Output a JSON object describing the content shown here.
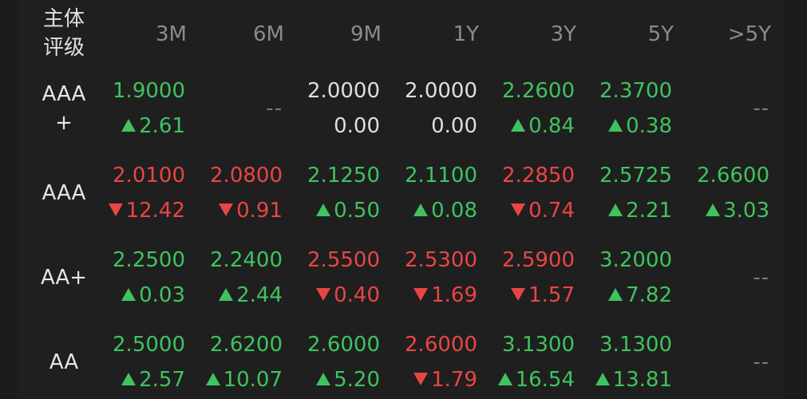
{
  "header": {
    "label_line1": "主体",
    "label_line2": "评级"
  },
  "columns": [
    "3M",
    "6M",
    "9M",
    "1Y",
    "3Y",
    "5Y",
    ">5Y"
  ],
  "empty_mark": "--",
  "colors": {
    "up": "#3fc35f",
    "down": "#ea4545",
    "flat": "#dedede",
    "background": "#1c1c1c"
  },
  "rows": [
    {
      "rating_line1": "AAA",
      "rating_line2": "+",
      "cells": [
        {
          "rate": "1.9000",
          "change": "2.61",
          "dir": "up"
        },
        {
          "empty": true
        },
        {
          "rate": "2.0000",
          "change": "0.00",
          "dir": "flat"
        },
        {
          "rate": "2.0000",
          "change": "0.00",
          "dir": "flat"
        },
        {
          "rate": "2.2600",
          "change": "0.84",
          "dir": "up"
        },
        {
          "rate": "2.3700",
          "change": "0.38",
          "dir": "up"
        },
        {
          "empty": true
        }
      ]
    },
    {
      "rating_line1": "AAA",
      "rating_line2": "",
      "cells": [
        {
          "rate": "2.0100",
          "change": "12.42",
          "dir": "down"
        },
        {
          "rate": "2.0800",
          "change": "0.91",
          "dir": "down"
        },
        {
          "rate": "2.1250",
          "change": "0.50",
          "dir": "up"
        },
        {
          "rate": "2.1100",
          "change": "0.08",
          "dir": "up"
        },
        {
          "rate": "2.2850",
          "change": "0.74",
          "dir": "down"
        },
        {
          "rate": "2.5725",
          "change": "2.21",
          "dir": "up"
        },
        {
          "rate": "2.6600",
          "change": "3.03",
          "dir": "up"
        }
      ]
    },
    {
      "rating_line1": "AA+",
      "rating_line2": "",
      "cells": [
        {
          "rate": "2.2500",
          "change": "0.03",
          "dir": "up"
        },
        {
          "rate": "2.2400",
          "change": "2.44",
          "dir": "up"
        },
        {
          "rate": "2.5500",
          "change": "0.40",
          "dir": "down"
        },
        {
          "rate": "2.5300",
          "change": "1.69",
          "dir": "down"
        },
        {
          "rate": "2.5900",
          "change": "1.57",
          "dir": "down"
        },
        {
          "rate": "3.2000",
          "change": "7.82",
          "dir": "up"
        },
        {
          "empty": true
        }
      ]
    },
    {
      "rating_line1": "AA",
      "rating_line2": "",
      "cells": [
        {
          "rate": "2.5000",
          "change": "2.57",
          "dir": "up"
        },
        {
          "rate": "2.6200",
          "change": "10.07",
          "dir": "up"
        },
        {
          "rate": "2.6000",
          "change": "5.20",
          "dir": "up"
        },
        {
          "rate": "2.6000",
          "change": "1.79",
          "dir": "down"
        },
        {
          "rate": "3.1300",
          "change": "16.54",
          "dir": "up"
        },
        {
          "rate": "3.1300",
          "change": "13.81",
          "dir": "up"
        },
        {
          "empty": true
        }
      ]
    }
  ]
}
